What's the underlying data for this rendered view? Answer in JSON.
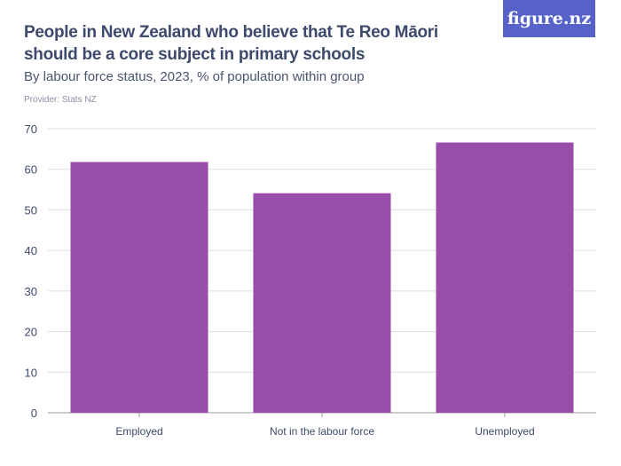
{
  "header": {
    "title": "People in New Zealand who believe that Te Reo Māori should be a core subject in primary schools",
    "subtitle": "By labour force status, 2023, % of population within group",
    "provider": "Provider: Stats NZ",
    "logo": "figure.nz"
  },
  "colors": {
    "bar": "#984ea9",
    "grid": "#dddddd",
    "text": "#3d4a6b"
  },
  "chart_data": {
    "type": "bar",
    "title": "People in New Zealand who believe that Te Reo Māori should be a core subject in primary schools",
    "subtitle": "By labour force status, 2023, % of population within group",
    "categories": [
      "Employed",
      "Not in the labour force",
      "Unemployed"
    ],
    "values": [
      61.8,
      54.1,
      66.6
    ],
    "ylim": [
      0,
      70
    ],
    "yticks": [
      0,
      10,
      20,
      30,
      40,
      50,
      60,
      70
    ],
    "grid": true
  }
}
